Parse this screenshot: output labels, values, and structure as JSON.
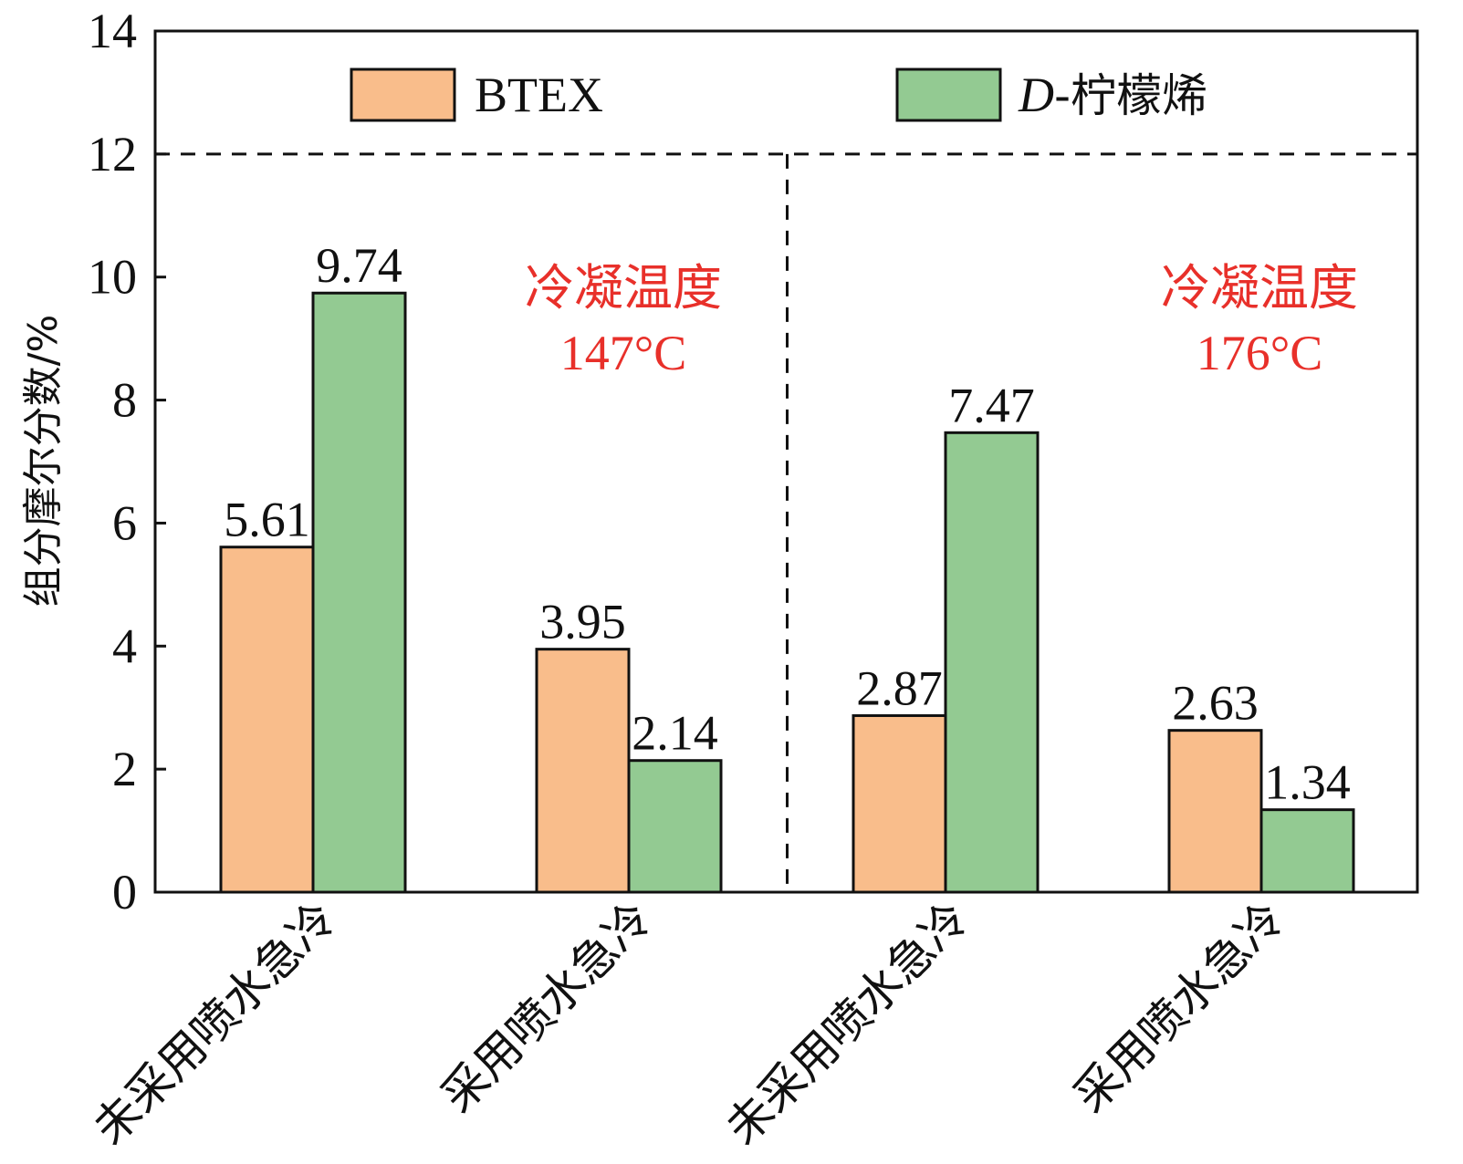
{
  "chart_data": {
    "type": "bar",
    "ylabel": "组分摩尔分数/%",
    "xlabel": "",
    "ylim": [
      0,
      14
    ],
    "yticks": [
      "0",
      "2",
      "4",
      "6",
      "8",
      "10",
      "12",
      "14"
    ],
    "yticks_values": [
      0,
      2,
      4,
      6,
      8,
      10,
      12,
      14
    ],
    "grid": false,
    "legend_position": "top",
    "categories": [
      "未采用喷水急冷",
      "采用喷水急冷",
      "未采用喷水急冷",
      "采用喷水急冷"
    ],
    "series": [
      {
        "name": "BTEX",
        "color": "#f9bd8b",
        "values": [
          5.61,
          3.95,
          2.87,
          2.63
        ],
        "labels": [
          "5.61",
          "3.95",
          "2.87",
          "2.63"
        ]
      },
      {
        "name": "D-柠檬烯",
        "name_italic_part": "D",
        "name_rest": "-柠檬烯",
        "color": "#93ca92",
        "values": [
          9.74,
          2.14,
          7.47,
          1.34
        ],
        "labels": [
          "9.74",
          "2.14",
          "7.47",
          "1.34"
        ]
      }
    ],
    "reference_line_y": 12,
    "annotations": [
      {
        "line1": "冷凝温度",
        "line2": "147°C",
        "color": "#e8302a"
      },
      {
        "line1": "冷凝温度",
        "line2": "176°C",
        "color": "#e8302a"
      }
    ]
  }
}
